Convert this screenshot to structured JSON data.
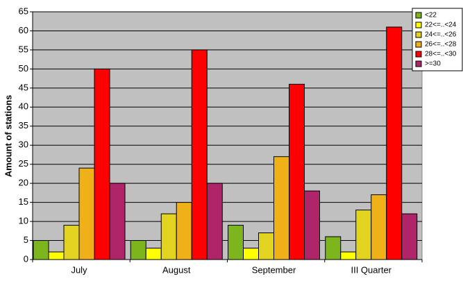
{
  "chart_data": {
    "type": "bar",
    "y_label": "Amount of stations",
    "categories": [
      "July",
      "August",
      "September",
      "III Quarter"
    ],
    "series": [
      {
        "name": "<22",
        "color": "#7db61c",
        "values": [
          5,
          5,
          9,
          6
        ]
      },
      {
        "name": "22<=..<24",
        "color": "#ffff00",
        "values": [
          2,
          3,
          3,
          2
        ]
      },
      {
        "name": "24<=..<26",
        "color": "#e2d320",
        "values": [
          9,
          12,
          7,
          13
        ]
      },
      {
        "name": "26<=..<28",
        "color": "#f0b018",
        "values": [
          24,
          15,
          27,
          17
        ]
      },
      {
        "name": "28<=..<30",
        "color": "#ff0000",
        "values": [
          50,
          55,
          46,
          61
        ]
      },
      {
        "name": ">=30",
        "color": "#b0246a",
        "values": [
          20,
          20,
          18,
          12
        ]
      }
    ],
    "ylim": [
      0,
      65
    ],
    "yticks": [
      0,
      5,
      10,
      15,
      20,
      25,
      30,
      35,
      40,
      45,
      50,
      55,
      60,
      65
    ],
    "grid": true,
    "legend": "top-right"
  }
}
